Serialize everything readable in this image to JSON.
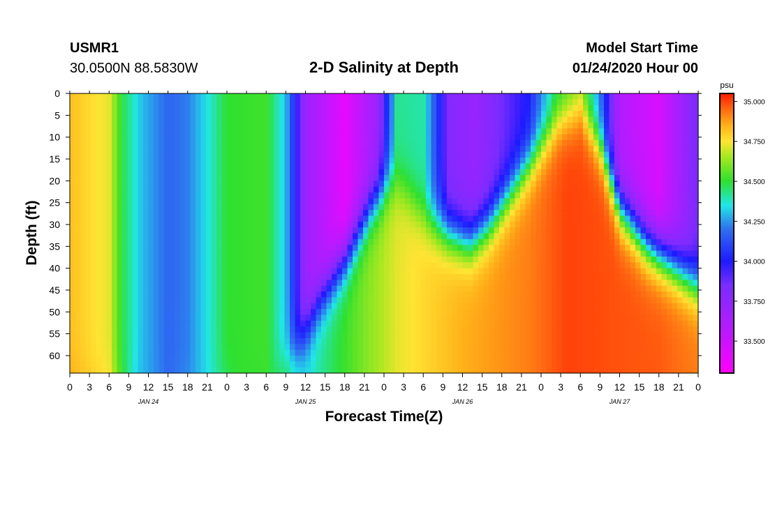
{
  "header": {
    "station": "USMR1",
    "coords": "30.0500N 88.5830W",
    "title": "2-D Salinity at Depth",
    "model_label": "Model Start Time",
    "model_time": "01/24/2020 Hour 00"
  },
  "chart_data": {
    "type": "heatmap",
    "title": "2-D Salinity at Depth",
    "xlabel": "Forecast Time(Z)",
    "ylabel": "Depth (ft)",
    "x_hours_range": [
      0,
      96
    ],
    "y_range_ft": [
      0,
      64
    ],
    "x_tick_step_hours": 3,
    "x_tick_labels": [
      "0",
      "3",
      "6",
      "9",
      "12",
      "15",
      "18",
      "21",
      "0",
      "3",
      "6",
      "9",
      "12",
      "15",
      "18",
      "21",
      "0",
      "3",
      "6",
      "9",
      "12",
      "15",
      "18",
      "21",
      "0",
      "3",
      "6",
      "9",
      "12",
      "15",
      "18",
      "21",
      "0"
    ],
    "date_labels": [
      {
        "label": "JAN 24",
        "hour": 12
      },
      {
        "label": "JAN 25",
        "hour": 36
      },
      {
        "label": "JAN 26",
        "hour": 60
      },
      {
        "label": "JAN 27",
        "hour": 84
      }
    ],
    "y_ticks": [
      0,
      5,
      10,
      15,
      20,
      25,
      30,
      35,
      40,
      45,
      50,
      55,
      60
    ],
    "colorbar": {
      "unit": "psu",
      "range": [
        33.3,
        35.05
      ],
      "ticks": [
        "35.000",
        "34.750",
        "34.500",
        "34.250",
        "34.000",
        "33.750",
        "33.500"
      ],
      "stops": [
        {
          "v": 33.3,
          "color": "#ff00ff"
        },
        {
          "v": 33.6,
          "color": "#b11cff"
        },
        {
          "v": 33.85,
          "color": "#7a2cff"
        },
        {
          "v": 34.0,
          "color": "#1e1aff"
        },
        {
          "v": 34.2,
          "color": "#2f6ff0"
        },
        {
          "v": 34.35,
          "color": "#21e6e6"
        },
        {
          "v": 34.5,
          "color": "#2fe02f"
        },
        {
          "v": 34.65,
          "color": "#a4e820"
        },
        {
          "v": 34.75,
          "color": "#ffe433"
        },
        {
          "v": 34.85,
          "color": "#ffb119"
        },
        {
          "v": 34.95,
          "color": "#ff6a12"
        },
        {
          "v": 35.05,
          "color": "#ff1a00"
        }
      ]
    },
    "surface_salinity_psu": [
      {
        "hour": 0,
        "value": 34.82
      },
      {
        "hour": 6,
        "value": 34.72
      },
      {
        "hour": 8,
        "value": 34.48
      },
      {
        "hour": 11,
        "value": 34.3
      },
      {
        "hour": 15,
        "value": 34.18
      },
      {
        "hour": 18,
        "value": 34.22
      },
      {
        "hour": 21,
        "value": 34.35
      },
      {
        "hour": 24,
        "value": 34.5
      },
      {
        "hour": 30,
        "value": 34.52
      },
      {
        "hour": 33,
        "value": 34.3
      },
      {
        "hour": 36,
        "value": 33.7
      },
      {
        "hour": 42,
        "value": 33.4
      },
      {
        "hour": 47,
        "value": 33.7
      },
      {
        "hour": 50,
        "value": 34.42
      },
      {
        "hour": 54,
        "value": 34.4
      },
      {
        "hour": 58,
        "value": 33.8
      },
      {
        "hour": 62,
        "value": 33.72
      },
      {
        "hour": 70,
        "value": 34.0
      },
      {
        "hour": 74,
        "value": 34.42
      },
      {
        "hour": 78,
        "value": 34.6
      },
      {
        "hour": 81,
        "value": 34.2
      },
      {
        "hour": 84,
        "value": 33.6
      },
      {
        "hour": 90,
        "value": 33.45
      },
      {
        "hour": 96,
        "value": 33.85
      }
    ],
    "bottom_salinity_psu": [
      {
        "hour": 0,
        "value": 34.9
      },
      {
        "hour": 6,
        "value": 34.78
      },
      {
        "hour": 10,
        "value": 34.3
      },
      {
        "hour": 15,
        "value": 34.2
      },
      {
        "hour": 20,
        "value": 34.3
      },
      {
        "hour": 26,
        "value": 34.5
      },
      {
        "hour": 33,
        "value": 34.5
      },
      {
        "hour": 36,
        "value": 34.35
      },
      {
        "hour": 45,
        "value": 34.6
      },
      {
        "hour": 50,
        "value": 34.72
      },
      {
        "hour": 60,
        "value": 34.85
      },
      {
        "hour": 70,
        "value": 34.92
      },
      {
        "hour": 76,
        "value": 35.0
      },
      {
        "hour": 84,
        "value": 34.98
      },
      {
        "hour": 90,
        "value": 34.97
      },
      {
        "hour": 96,
        "value": 34.92
      }
    ],
    "halocline_depth_ft": [
      {
        "hour": 0,
        "value": 66
      },
      {
        "hour": 30,
        "value": 66
      },
      {
        "hour": 35,
        "value": 58
      },
      {
        "hour": 38,
        "value": 48
      },
      {
        "hour": 42,
        "value": 38
      },
      {
        "hour": 46,
        "value": 26
      },
      {
        "hour": 49,
        "value": 20
      },
      {
        "hour": 51,
        "value": 22
      },
      {
        "hour": 54,
        "value": 28
      },
      {
        "hour": 57,
        "value": 31
      },
      {
        "hour": 61,
        "value": 34
      },
      {
        "hour": 64,
        "value": 30
      },
      {
        "hour": 68,
        "value": 21
      },
      {
        "hour": 72,
        "value": 12
      },
      {
        "hour": 75,
        "value": 6
      },
      {
        "hour": 78,
        "value": 4
      },
      {
        "hour": 81,
        "value": 12
      },
      {
        "hour": 84,
        "value": 26
      },
      {
        "hour": 88,
        "value": 34
      },
      {
        "hour": 92,
        "value": 39
      },
      {
        "hour": 96,
        "value": 44
      }
    ]
  }
}
